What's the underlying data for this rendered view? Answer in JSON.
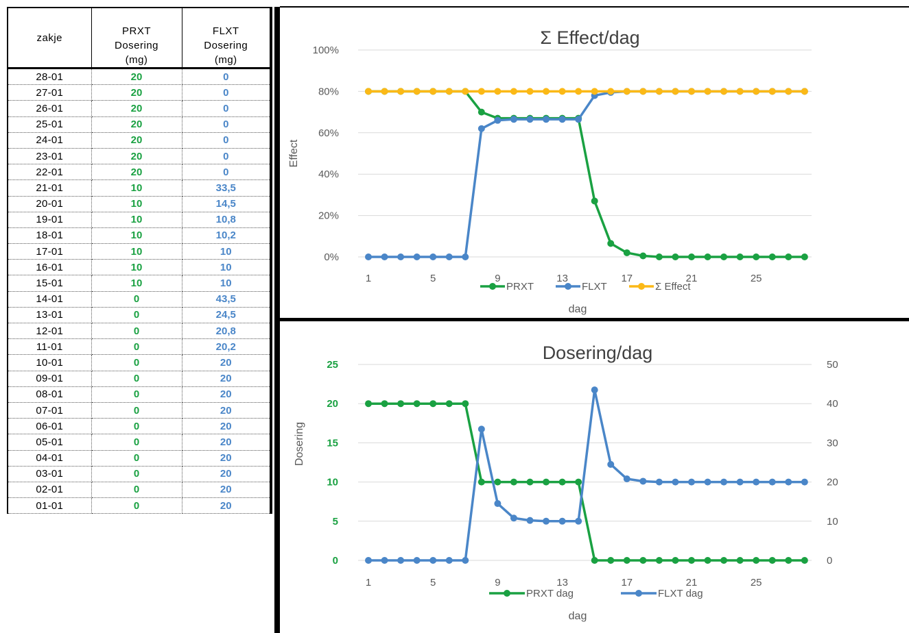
{
  "table": {
    "headers": {
      "date": "zakje",
      "prxt": [
        "PRXT",
        "Dosering",
        "(mg)"
      ],
      "flxt": [
        "FLXT",
        "Dosering",
        "(mg)"
      ]
    },
    "rows": [
      {
        "date": "28-01",
        "prxt": "20",
        "flxt": "0"
      },
      {
        "date": "27-01",
        "prxt": "20",
        "flxt": "0"
      },
      {
        "date": "26-01",
        "prxt": "20",
        "flxt": "0"
      },
      {
        "date": "25-01",
        "prxt": "20",
        "flxt": "0"
      },
      {
        "date": "24-01",
        "prxt": "20",
        "flxt": "0"
      },
      {
        "date": "23-01",
        "prxt": "20",
        "flxt": "0"
      },
      {
        "date": "22-01",
        "prxt": "20",
        "flxt": "0"
      },
      {
        "date": "21-01",
        "prxt": "10",
        "flxt": "33,5"
      },
      {
        "date": "20-01",
        "prxt": "10",
        "flxt": "14,5"
      },
      {
        "date": "19-01",
        "prxt": "10",
        "flxt": "10,8"
      },
      {
        "date": "18-01",
        "prxt": "10",
        "flxt": "10,2"
      },
      {
        "date": "17-01",
        "prxt": "10",
        "flxt": "10"
      },
      {
        "date": "16-01",
        "prxt": "10",
        "flxt": "10"
      },
      {
        "date": "15-01",
        "prxt": "10",
        "flxt": "10"
      },
      {
        "date": "14-01",
        "prxt": "0",
        "flxt": "43,5"
      },
      {
        "date": "13-01",
        "prxt": "0",
        "flxt": "24,5"
      },
      {
        "date": "12-01",
        "prxt": "0",
        "flxt": "20,8"
      },
      {
        "date": "11-01",
        "prxt": "0",
        "flxt": "20,2"
      },
      {
        "date": "10-01",
        "prxt": "0",
        "flxt": "20"
      },
      {
        "date": "09-01",
        "prxt": "0",
        "flxt": "20"
      },
      {
        "date": "08-01",
        "prxt": "0",
        "flxt": "20"
      },
      {
        "date": "07-01",
        "prxt": "0",
        "flxt": "20"
      },
      {
        "date": "06-01",
        "prxt": "0",
        "flxt": "20"
      },
      {
        "date": "05-01",
        "prxt": "0",
        "flxt": "20"
      },
      {
        "date": "04-01",
        "prxt": "0",
        "flxt": "20"
      },
      {
        "date": "03-01",
        "prxt": "0",
        "flxt": "20"
      },
      {
        "date": "02-01",
        "prxt": "0",
        "flxt": "20"
      },
      {
        "date": "01-01",
        "prxt": "0",
        "flxt": "20"
      }
    ]
  },
  "colors": {
    "prxt": "#1aa142",
    "flxt": "#4a86c8",
    "effect": "#fbb917",
    "grid": "#d9d9d9"
  },
  "chart_data": [
    {
      "type": "line",
      "title": "Σ Effect/dag",
      "xlabel": "dag",
      "ylabel": "Effect",
      "x": [
        1,
        2,
        3,
        4,
        5,
        6,
        7,
        8,
        9,
        10,
        11,
        12,
        13,
        14,
        15,
        16,
        17,
        18,
        19,
        20,
        21,
        22,
        23,
        24,
        25,
        26,
        27,
        28
      ],
      "xticks": [
        1,
        5,
        9,
        13,
        17,
        21,
        25
      ],
      "ylim": [
        0,
        100
      ],
      "yticks": [
        "0%",
        "20%",
        "40%",
        "60%",
        "80%",
        "100%"
      ],
      "grid": true,
      "legend": "bottom",
      "series": [
        {
          "name": "PRXT",
          "color": "#1aa142",
          "values": [
            80,
            80,
            80,
            80,
            80,
            80,
            80,
            70,
            67,
            67,
            67,
            67,
            67,
            67,
            27,
            6.5,
            2,
            0.5,
            0,
            0,
            0,
            0,
            0,
            0,
            0,
            0,
            0,
            0
          ]
        },
        {
          "name": "FLXT",
          "color": "#4a86c8",
          "values": [
            0,
            0,
            0,
            0,
            0,
            0,
            0,
            62,
            66,
            66.5,
            66.5,
            66.5,
            66.5,
            66.5,
            78,
            79.5,
            80,
            80,
            80,
            80,
            80,
            80,
            80,
            80,
            80,
            80,
            80,
            80
          ]
        },
        {
          "name": "Σ Effect",
          "color": "#fbb917",
          "values": [
            80,
            80,
            80,
            80,
            80,
            80,
            80,
            80,
            80,
            80,
            80,
            80,
            80,
            80,
            80,
            80,
            80,
            80,
            80,
            80,
            80,
            80,
            80,
            80,
            80,
            80,
            80,
            80
          ]
        }
      ]
    },
    {
      "type": "line",
      "title": "Dosering/dag",
      "xlabel": "dag",
      "ylabel": "Dosering",
      "x": [
        1,
        2,
        3,
        4,
        5,
        6,
        7,
        8,
        9,
        10,
        11,
        12,
        13,
        14,
        15,
        16,
        17,
        18,
        19,
        20,
        21,
        22,
        23,
        24,
        25,
        26,
        27,
        28
      ],
      "xticks": [
        1,
        5,
        9,
        13,
        17,
        21,
        25
      ],
      "ylim": [
        0,
        25
      ],
      "yticks": [
        "0",
        "5",
        "10",
        "15",
        "20",
        "25"
      ],
      "y2lim": [
        0,
        50
      ],
      "y2ticks": [
        "0",
        "10",
        "20",
        "30",
        "40",
        "50"
      ],
      "grid": true,
      "legend": "bottom",
      "series": [
        {
          "name": "PRXT dag",
          "axis": "left",
          "color": "#1aa142",
          "values": [
            20,
            20,
            20,
            20,
            20,
            20,
            20,
            10,
            10,
            10,
            10,
            10,
            10,
            10,
            0,
            0,
            0,
            0,
            0,
            0,
            0,
            0,
            0,
            0,
            0,
            0,
            0,
            0
          ]
        },
        {
          "name": "FLXT dag",
          "axis": "right",
          "color": "#4a86c8",
          "values": [
            0,
            0,
            0,
            0,
            0,
            0,
            0,
            33.5,
            14.5,
            10.8,
            10.2,
            10,
            10,
            10,
            43.5,
            24.5,
            20.8,
            20.2,
            20,
            20,
            20,
            20,
            20,
            20,
            20,
            20,
            20,
            20
          ]
        }
      ]
    }
  ]
}
